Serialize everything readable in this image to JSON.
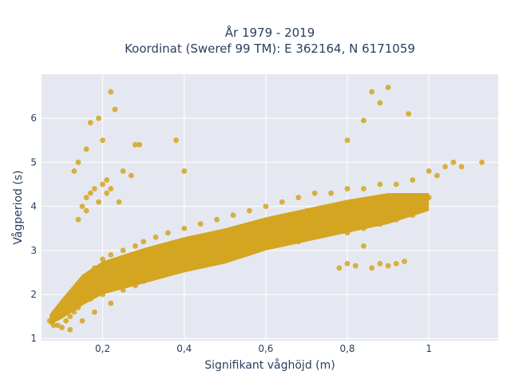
{
  "chart_data": {
    "type": "scatter",
    "title_line1": "År 1979 - 2019",
    "title_line2": "Koordinat (Sweref 99 TM): E 362164, N 6171059",
    "xlabel": "Signifikant våghöjd (m)",
    "ylabel": "Vågperiod (s)",
    "xlim": [
      0.05,
      1.17
    ],
    "ylim": [
      0.95,
      7.0
    ],
    "x_ticks": [
      0.2,
      0.4,
      0.6,
      0.8,
      1.0
    ],
    "x_tick_labels": [
      "0,2",
      "0,4",
      "0,6",
      "0,8",
      "1"
    ],
    "y_ticks": [
      1,
      2,
      3,
      4,
      5,
      6
    ],
    "y_tick_labels": [
      "1",
      "2",
      "3",
      "4",
      "5",
      "6"
    ],
    "grid": true,
    "plot_bgcolor": "#e5e8f1",
    "marker_color": "#d4a520",
    "points": [
      [
        0.07,
        1.4
      ],
      [
        0.08,
        1.5
      ],
      [
        0.09,
        1.3
      ],
      [
        0.1,
        1.6
      ],
      [
        0.1,
        1.25
      ],
      [
        0.11,
        1.8
      ],
      [
        0.12,
        1.5
      ],
      [
        0.12,
        1.2
      ],
      [
        0.13,
        2.0
      ],
      [
        0.14,
        1.7
      ],
      [
        0.15,
        2.2
      ],
      [
        0.15,
        1.4
      ],
      [
        0.16,
        2.4
      ],
      [
        0.17,
        1.9
      ],
      [
        0.18,
        2.6
      ],
      [
        0.18,
        1.6
      ],
      [
        0.2,
        2.8
      ],
      [
        0.2,
        2.0
      ],
      [
        0.22,
        2.9
      ],
      [
        0.22,
        1.8
      ],
      [
        0.25,
        3.0
      ],
      [
        0.25,
        2.1
      ],
      [
        0.28,
        3.1
      ],
      [
        0.28,
        2.2
      ],
      [
        0.3,
        3.2
      ],
      [
        0.3,
        2.3
      ],
      [
        0.33,
        3.3
      ],
      [
        0.33,
        2.4
      ],
      [
        0.36,
        3.4
      ],
      [
        0.36,
        2.5
      ],
      [
        0.4,
        3.5
      ],
      [
        0.4,
        2.6
      ],
      [
        0.44,
        3.6
      ],
      [
        0.44,
        2.7
      ],
      [
        0.48,
        3.7
      ],
      [
        0.48,
        2.8
      ],
      [
        0.52,
        3.8
      ],
      [
        0.52,
        2.9
      ],
      [
        0.56,
        3.9
      ],
      [
        0.56,
        3.0
      ],
      [
        0.6,
        4.0
      ],
      [
        0.6,
        3.1
      ],
      [
        0.64,
        4.1
      ],
      [
        0.64,
        3.2
      ],
      [
        0.68,
        4.2
      ],
      [
        0.68,
        3.2
      ],
      [
        0.72,
        4.3
      ],
      [
        0.72,
        3.3
      ],
      [
        0.76,
        4.3
      ],
      [
        0.76,
        3.4
      ],
      [
        0.8,
        4.4
      ],
      [
        0.8,
        3.4
      ],
      [
        0.84,
        4.4
      ],
      [
        0.84,
        3.5
      ],
      [
        0.88,
        4.5
      ],
      [
        0.88,
        3.6
      ],
      [
        0.92,
        4.5
      ],
      [
        0.92,
        3.7
      ],
      [
        0.96,
        4.6
      ],
      [
        0.96,
        3.8
      ],
      [
        1.0,
        4.8
      ],
      [
        1.02,
        4.7
      ],
      [
        1.04,
        4.9
      ],
      [
        1.06,
        5.0
      ],
      [
        1.08,
        4.9
      ],
      [
        1.13,
        5.0
      ],
      [
        1.0,
        4.2
      ],
      [
        0.98,
        3.9
      ],
      [
        0.84,
        3.1
      ],
      [
        0.86,
        2.6
      ],
      [
        0.88,
        2.7
      ],
      [
        0.9,
        2.65
      ],
      [
        0.92,
        2.7
      ],
      [
        0.94,
        2.75
      ],
      [
        0.78,
        2.6
      ],
      [
        0.8,
        2.7
      ],
      [
        0.82,
        2.65
      ],
      [
        0.14,
        3.7
      ],
      [
        0.15,
        4.0
      ],
      [
        0.16,
        4.2
      ],
      [
        0.17,
        4.3
      ],
      [
        0.18,
        4.4
      ],
      [
        0.19,
        4.1
      ],
      [
        0.2,
        4.5
      ],
      [
        0.21,
        4.3
      ],
      [
        0.22,
        4.4
      ],
      [
        0.16,
        3.9
      ],
      [
        0.13,
        4.8
      ],
      [
        0.14,
        5.0
      ],
      [
        0.16,
        5.3
      ],
      [
        0.17,
        5.9
      ],
      [
        0.19,
        6.0
      ],
      [
        0.2,
        5.5
      ],
      [
        0.22,
        6.6
      ],
      [
        0.23,
        6.2
      ],
      [
        0.25,
        4.8
      ],
      [
        0.27,
        4.7
      ],
      [
        0.28,
        5.4
      ],
      [
        0.38,
        5.5
      ],
      [
        0.4,
        4.8
      ],
      [
        0.8,
        5.5
      ],
      [
        0.84,
        5.95
      ],
      [
        0.86,
        6.6
      ],
      [
        0.88,
        6.35
      ],
      [
        0.9,
        6.7
      ],
      [
        0.95,
        6.1
      ],
      [
        0.29,
        5.4
      ],
      [
        0.24,
        4.1
      ],
      [
        0.21,
        4.6
      ],
      [
        0.45,
        3.1
      ],
      [
        0.5,
        2.9
      ],
      [
        0.55,
        3.5
      ],
      [
        0.62,
        3.6
      ],
      [
        0.7,
        3.9
      ],
      [
        0.74,
        3.5
      ],
      [
        0.66,
        3.3
      ],
      [
        0.58,
        3.2
      ],
      [
        0.35,
        2.9
      ],
      [
        0.32,
        2.7
      ],
      [
        0.27,
        2.5
      ],
      [
        0.23,
        2.3
      ],
      [
        0.19,
        2.1
      ],
      [
        0.17,
        2.0
      ],
      [
        0.13,
        1.6
      ],
      [
        0.11,
        1.4
      ],
      [
        0.09,
        1.5
      ],
      [
        0.08,
        1.3
      ]
    ]
  }
}
